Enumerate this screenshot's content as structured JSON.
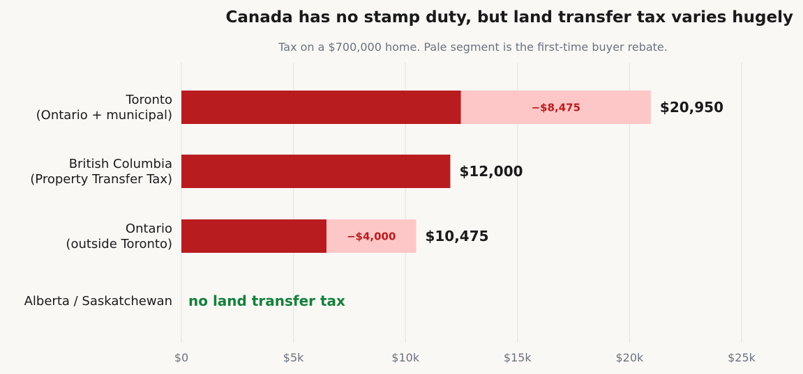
{
  "chart_data": {
    "type": "bar",
    "orientation": "horizontal",
    "stacked": true,
    "title": "Canada has no stamp duty, but land transfer tax varies hugely",
    "subtitle": "Tax on a $700,000 home. Pale segment is the first-time buyer rebate.",
    "categories": [
      [
        "Toronto",
        "(Ontario + municipal)"
      ],
      [
        "British Columbia",
        "(Property Transfer Tax)"
      ],
      [
        "Ontario",
        "(outside Toronto)"
      ],
      [
        "Alberta / Saskatchewan"
      ]
    ],
    "series": [
      {
        "values": [
          12475,
          12000,
          6475,
          0
        ],
        "color": "#b91c1f"
      },
      {
        "values": [
          8475,
          0,
          4000,
          0
        ],
        "color": "#fec7c7"
      }
    ],
    "rebate_labels": [
      "−$8,475",
      "",
      "−$4,000",
      ""
    ],
    "total_labels": [
      "$20,950",
      "$12,000",
      "$10,475",
      ""
    ],
    "notes": [
      "",
      "",
      "",
      "no land transfer tax"
    ],
    "xlim": [
      0,
      27500
    ],
    "xticks": [
      0,
      5000,
      10000,
      15000,
      20000,
      25000
    ],
    "xtick_labels": [
      "$0",
      "$5k",
      "$10k",
      "$15k",
      "$20k",
      "$25k"
    ],
    "grid": "vertical",
    "colors": {
      "rebate_text": "#b91c1f",
      "note_text": "#15803d",
      "grid": "#e5e5e2"
    }
  }
}
